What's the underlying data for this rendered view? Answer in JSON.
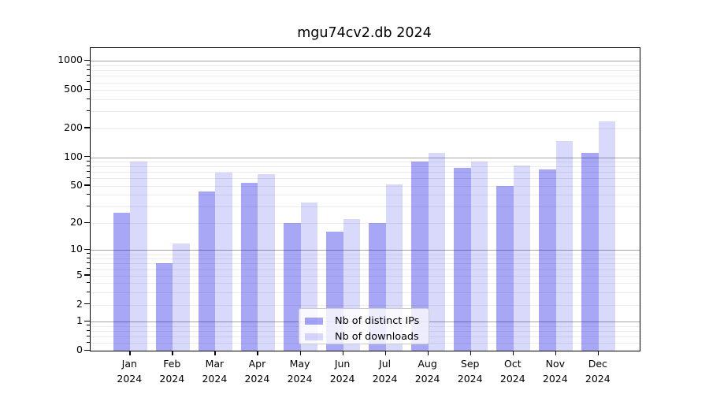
{
  "title": "mgu74cv2.db 2024",
  "chart_data": {
    "type": "bar",
    "categories": [
      "Jan",
      "Feb",
      "Mar",
      "Apr",
      "May",
      "Jun",
      "Jul",
      "Aug",
      "Sep",
      "Oct",
      "Nov",
      "Dec"
    ],
    "year_label": "2024",
    "series": [
      {
        "name": "Nb of distinct IPs",
        "color": "rgba(0,0,230,0.345)",
        "values": [
          26,
          7,
          44,
          54,
          20,
          16,
          20,
          90,
          78,
          50,
          75,
          112
        ]
      },
      {
        "name": "Nb of downloads",
        "color": "rgba(0,0,230,0.15)",
        "values": [
          90,
          12,
          69,
          67,
          33,
          22,
          52,
          112,
          90,
          82,
          147,
          235
        ]
      }
    ],
    "yscale": "log1p",
    "ylim": [
      0,
      1370
    ],
    "yticks": [
      0,
      1,
      2,
      5,
      10,
      20,
      50,
      100,
      200,
      500,
      1000
    ],
    "major_gridlines": [
      1,
      10,
      100,
      1000
    ],
    "minor_gridlines": [
      0.2,
      0.4,
      0.6,
      0.8,
      2,
      3,
      4,
      5,
      6,
      7,
      8,
      9,
      20,
      30,
      40,
      50,
      60,
      70,
      80,
      90,
      200,
      300,
      400,
      500,
      600,
      700,
      800,
      900
    ],
    "grid": true,
    "legend_position": "lower center",
    "xlabel": "",
    "ylabel": ""
  },
  "colors": {
    "minor_grid": "#ebebeb",
    "major_grid": "#a5a5a5",
    "spine": "#000000",
    "legend_border": "#cccccc",
    "distinct_ips_bar": "#a7a7f6",
    "downloads_bar": "#d9d9fb"
  }
}
